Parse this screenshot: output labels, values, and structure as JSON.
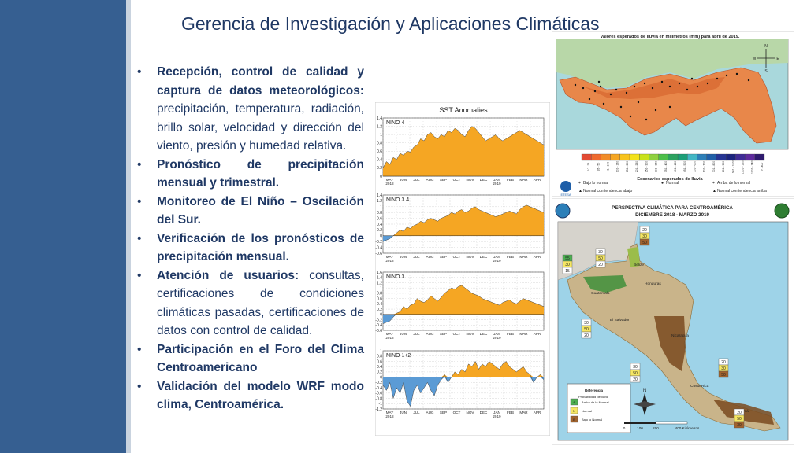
{
  "slide": {
    "title": "Gerencia de Investigación y Aplicaciones Climáticas",
    "bullets": [
      {
        "bold": "Recepción, control de calidad y captura de datos meteorológicos:",
        "rest": " precipitación, temperatura, radiación, brillo solar, velocidad y dirección del viento, presión y humedad relativa."
      },
      {
        "bold": "Pronóstico de precipitación mensual y trimestral.",
        "rest": ""
      },
      {
        "bold": "Monitoreo de El Niño – Oscilación del Sur.",
        "rest": ""
      },
      {
        "bold": "Verificación de los pronósticos de precipitación mensual.",
        "rest": ""
      },
      {
        "bold": "Atención de usuarios:",
        "rest": " consultas, certificaciones de condiciones climáticas pasadas, certificaciones de datos con control de calidad."
      },
      {
        "bold": "Participación en el Foro del Clima Centroamericano",
        "rest": ""
      },
      {
        "bold": "Validación del modelo WRF modo clima, Centroamérica.",
        "rest": ""
      }
    ]
  },
  "sst": {
    "title": "SST Anomalies",
    "months": [
      "MAY",
      "JUN",
      "JUL",
      "AUG",
      "SEP",
      "OCT",
      "NOV",
      "DEC",
      "JAN",
      "FEB",
      "MAR",
      "APR"
    ],
    "year_start": "2018",
    "year_mid": "2019",
    "colors": {
      "positive": "#f5a623",
      "negative": "#5b9bd5"
    },
    "panels": [
      {
        "label": "NINO 4",
        "ticks": [
          "1.4",
          "1.2",
          "1",
          "0.8",
          "0.6",
          "0.4",
          "0.2",
          "0"
        ],
        "ymin": 0,
        "ymax": 1.4,
        "values": [
          0.2,
          0.35,
          0.28,
          0.45,
          0.4,
          0.55,
          0.5,
          0.6,
          0.58,
          0.7,
          0.75,
          0.9,
          0.85,
          1.0,
          1.05,
          0.95,
          0.9,
          1.0,
          0.95,
          1.1,
          1.05,
          1.15,
          1.1,
          1.0,
          0.95,
          1.1,
          1.2,
          1.15,
          1.05,
          0.95,
          0.85,
          0.9,
          0.95,
          1.0,
          0.9,
          0.85,
          0.9,
          0.95,
          1.0,
          1.05,
          1.1,
          1.05,
          1.0,
          0.95,
          0.9,
          0.85,
          0.8,
          0.75
        ]
      },
      {
        "label": "NINO 3.4",
        "ticks": [
          "1.4",
          "1.2",
          "1",
          "0.8",
          "0.6",
          "0.4",
          "0.2",
          "0",
          "-0.2",
          "-0.4",
          "-0.6"
        ],
        "ymin": -0.6,
        "ymax": 1.4,
        "values": [
          -0.2,
          -0.15,
          -0.1,
          0.0,
          0.1,
          0.2,
          0.15,
          0.3,
          0.25,
          0.35,
          0.4,
          0.5,
          0.45,
          0.55,
          0.6,
          0.55,
          0.5,
          0.6,
          0.65,
          0.7,
          0.8,
          0.75,
          0.85,
          0.9,
          0.8,
          0.85,
          0.95,
          1.0,
          0.9,
          0.85,
          0.8,
          0.75,
          0.7,
          0.65,
          0.7,
          0.75,
          0.8,
          0.85,
          0.8,
          0.75,
          0.9,
          1.0,
          1.05,
          1.0,
          0.95,
          0.9,
          0.85,
          0.8
        ]
      },
      {
        "label": "NINO 3",
        "ticks": [
          "1.6",
          "1.4",
          "1.2",
          "1",
          "0.8",
          "0.6",
          "0.4",
          "0.2",
          "0",
          "-0.2",
          "-0.4",
          "-0.6"
        ],
        "ymin": -0.6,
        "ymax": 1.6,
        "values": [
          -0.35,
          -0.3,
          -0.25,
          -0.1,
          0.05,
          0.1,
          0.3,
          0.2,
          0.35,
          0.4,
          0.6,
          0.5,
          0.45,
          0.55,
          0.7,
          0.6,
          0.5,
          0.65,
          0.8,
          0.9,
          1.0,
          0.95,
          1.05,
          1.1,
          1.0,
          0.9,
          0.8,
          0.75,
          0.7,
          0.6,
          0.55,
          0.5,
          0.45,
          0.4,
          0.35,
          0.45,
          0.5,
          0.55,
          0.45,
          0.4,
          0.5,
          0.6,
          0.55,
          0.5,
          0.45,
          0.4,
          0.35,
          0.3
        ]
      },
      {
        "label": "NINO 1+2",
        "ticks": [
          "1",
          "0.8",
          "0.6",
          "0.4",
          "0.2",
          "0",
          "-0.2",
          "-0.4",
          "-0.6",
          "-0.8",
          "-1",
          "-1.2"
        ],
        "ymin": -1.2,
        "ymax": 1.0,
        "values": [
          -0.3,
          -0.5,
          -0.2,
          -0.8,
          -0.4,
          -0.6,
          -0.2,
          -0.9,
          -1.1,
          -0.5,
          -0.3,
          -0.6,
          -0.4,
          -0.2,
          -0.5,
          -0.7,
          -0.3,
          -0.1,
          0.1,
          -0.2,
          0.0,
          0.2,
          0.1,
          0.3,
          0.2,
          0.5,
          0.4,
          0.6,
          0.3,
          0.5,
          0.4,
          0.6,
          0.5,
          0.4,
          0.3,
          0.5,
          0.6,
          0.4,
          0.3,
          0.2,
          0.3,
          0.4,
          0.2,
          0.1,
          -0.2,
          0.0,
          0.1,
          -0.1
        ]
      }
    ]
  },
  "panama_map": {
    "title": "Valores esperados de lluvia en milimetros (mm) para abril de 2019.",
    "compass": [
      "N",
      "W",
      "E",
      "S"
    ],
    "legend_title": "Escenarios esperados de lluvia",
    "scale": [
      {
        "label": "10 - 25",
        "color": "#e34a33"
      },
      {
        "label": "26 - 50",
        "color": "#ef6a2e"
      },
      {
        "label": "51 - 100",
        "color": "#f28c28"
      },
      {
        "label": "101 - 150",
        "color": "#f5a623"
      },
      {
        "label": "151 - 200",
        "color": "#f8c31c"
      },
      {
        "label": "201 - 250",
        "color": "#f3e21a"
      },
      {
        "label": "251 - 300",
        "color": "#c9e21a"
      },
      {
        "label": "301 - 350",
        "color": "#8fd13f"
      },
      {
        "label": "351 - 400",
        "color": "#4cbf4a"
      },
      {
        "label": "401 - 450",
        "color": "#2ca25f"
      },
      {
        "label": "451 - 500",
        "color": "#1b9e77"
      },
      {
        "label": "501 - 600",
        "color": "#41b6c4"
      },
      {
        "label": "601 - 700",
        "color": "#2c7fb8"
      },
      {
        "label": "701 - 800",
        "color": "#1f5fa8"
      },
      {
        "label": "801 - 900",
        "color": "#253494"
      },
      {
        "label": "901 - 1000",
        "color": "#1a237e"
      },
      {
        "label": "1001 - 1200",
        "color": "#3f2b96"
      },
      {
        "label": "1201 - 1400",
        "color": "#5e2a9e"
      },
      {
        "label": "> 1400",
        "color": "#2e1a6e"
      }
    ],
    "legend_items": [
      "Bajo lo normal",
      "Normal",
      "Arriba de lo normal",
      "Normal con tendencia abajo",
      "Normal con tendencia arriba"
    ],
    "logo": "ETESA"
  },
  "ca_map": {
    "title_line1": "PERSPECTIVA CLIMÁTICA PARA CENTROAMÉRICA",
    "title_line2": "DICIEMBRE 2018 - MARZO 2019",
    "countries": [
      "Belize",
      "Guatemala",
      "Honduras",
      "El Salvador",
      "Nicaragua",
      "Costa Rica",
      "Panamá"
    ],
    "prob_boxes": [
      {
        "top": "20",
        "mid": "30",
        "bot": "50"
      },
      {
        "top": "55",
        "mid": "30",
        "bot": "15"
      },
      {
        "top": "30",
        "mid": "50",
        "bot": "20"
      },
      {
        "top": "30",
        "mid": "50",
        "bot": "20"
      },
      {
        "top": "30",
        "mid": "50",
        "bot": "20"
      },
      {
        "top": "20",
        "mid": "30",
        "bot": "50"
      },
      {
        "top": "20",
        "mid": "50",
        "bot": "30"
      }
    ],
    "reference_title": "Referencia",
    "reference_subtitle": "Probabilidad de lluvia",
    "reference_items": [
      {
        "letter": "A",
        "label": "Arriba de lo Normal",
        "color": "#4caf50"
      },
      {
        "letter": "N",
        "label": "Normal",
        "color": "#f5e663"
      },
      {
        "letter": "B",
        "label": "Bajo lo Normal",
        "color": "#a0622d"
      }
    ],
    "compass": "N",
    "scale_labels": [
      "0",
      "100",
      "200",
      "400 Kilómetros"
    ]
  }
}
